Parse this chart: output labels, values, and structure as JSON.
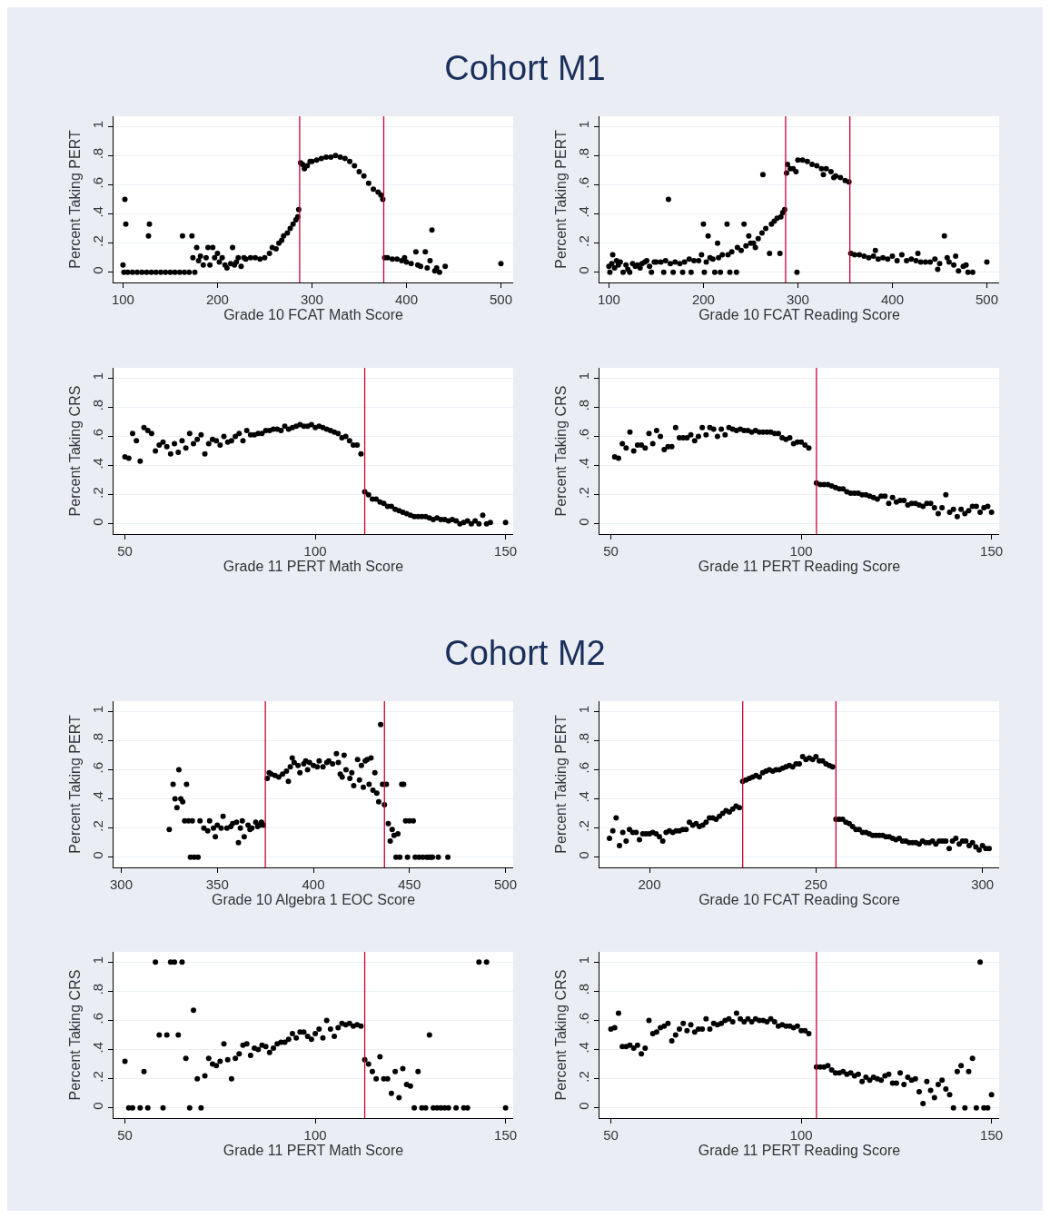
{
  "chart_data": [
    {
      "type": "scatter",
      "title": "Cohort M1",
      "xlabel": "Grade 10 FCAT Math Score",
      "ylabel": "Percent Taking PERT",
      "color": "#000000",
      "marker": "circle",
      "grid": "y",
      "xlim": [
        90,
        513
      ],
      "xticks": [
        100,
        200,
        300,
        400,
        500
      ],
      "ylim": [
        -0.07,
        1.07
      ],
      "yticks": [
        {
          "value": 0,
          "label": "0"
        },
        {
          "value": 0.2,
          "label": ".2"
        },
        {
          "value": 0.4,
          "label": ".4"
        },
        {
          "value": 0.6,
          "label": ".6"
        },
        {
          "value": 0.8,
          "label": ".8"
        },
        {
          "value": 1,
          "label": "1"
        }
      ],
      "ref_lines": [
        {
          "axis": "x",
          "value": 287,
          "color": "#cc0033"
        },
        {
          "axis": "x",
          "value": 376,
          "color": "#cc0033"
        }
      ],
      "x": [
        100,
        102,
        103,
        101,
        105,
        110,
        115,
        120,
        125,
        127,
        128,
        130,
        135,
        140,
        145,
        150,
        155,
        160,
        163,
        165,
        170,
        173,
        174,
        176,
        178,
        180,
        182,
        185,
        188,
        190,
        192,
        195,
        197,
        200,
        202,
        205,
        208,
        210,
        214,
        216,
        218,
        220,
        222,
        225,
        228,
        230,
        235,
        240,
        245,
        250,
        255,
        258,
        262,
        265,
        268,
        270,
        274,
        277,
        280,
        283,
        285,
        286,
        288,
        290,
        292,
        295,
        298,
        300,
        305,
        310,
        315,
        320,
        325,
        330,
        335,
        340,
        345,
        350,
        355,
        360,
        365,
        370,
        373,
        375,
        377,
        380,
        385,
        390,
        395,
        398,
        400,
        405,
        410,
        412,
        415,
        420,
        422,
        425,
        427,
        430,
        432,
        435,
        441,
        500
      ],
      "values": [
        0.05,
        0.5,
        0.33,
        0,
        0,
        0,
        0,
        0,
        0,
        0.25,
        0.33,
        0,
        0,
        0,
        0,
        0,
        0,
        0,
        0.25,
        0,
        0,
        0.25,
        0.1,
        0,
        0.17,
        0.08,
        0.11,
        0.05,
        0.1,
        0.17,
        0.05,
        0.17,
        0.1,
        0.13,
        0.07,
        0.1,
        0.05,
        0.03,
        0.06,
        0.17,
        0.05,
        0.07,
        0.1,
        0.04,
        0.1,
        0.09,
        0.1,
        0.1,
        0.09,
        0.1,
        0.13,
        0.17,
        0.16,
        0.2,
        0.22,
        0.25,
        0.27,
        0.3,
        0.33,
        0.36,
        0.38,
        0.43,
        0.75,
        0.74,
        0.71,
        0.73,
        0.76,
        0.76,
        0.77,
        0.78,
        0.79,
        0.79,
        0.8,
        0.79,
        0.78,
        0.76,
        0.73,
        0.69,
        0.66,
        0.61,
        0.57,
        0.55,
        0.53,
        0.5,
        0.1,
        0.1,
        0.09,
        0.09,
        0.08,
        0.1,
        0.07,
        0.06,
        0.14,
        0.05,
        0.04,
        0.14,
        0.03,
        0.08,
        0.29,
        0.01,
        0.03,
        0,
        0.04,
        0.06
      ]
    },
    {
      "type": "scatter",
      "xlabel": "Grade 10 FCAT Reading Score",
      "ylabel": "Percent Taking PERT",
      "color": "#000000",
      "marker": "circle",
      "grid": "y",
      "xlim": [
        90,
        513
      ],
      "xticks": [
        100,
        200,
        300,
        400,
        500
      ],
      "ylim": [
        -0.07,
        1.07
      ],
      "yticks": [
        {
          "value": 0,
          "label": "0"
        },
        {
          "value": 0.2,
          "label": ".2"
        },
        {
          "value": 0.4,
          "label": ".4"
        },
        {
          "value": 0.6,
          "label": ".6"
        },
        {
          "value": 0.8,
          "label": ".8"
        },
        {
          "value": 1,
          "label": "1"
        }
      ],
      "ref_lines": [
        {
          "axis": "x",
          "value": 287,
          "color": "#cc0033"
        },
        {
          "axis": "x",
          "value": 355,
          "color": "#cc0033"
        }
      ],
      "x": [
        100,
        101,
        103,
        104,
        106,
        108,
        110,
        112,
        115,
        118,
        120,
        122,
        125,
        128,
        130,
        133,
        135,
        138,
        140,
        143,
        145,
        148,
        150,
        155,
        158,
        160,
        163,
        165,
        168,
        170,
        175,
        178,
        180,
        185,
        187,
        190,
        195,
        198,
        200,
        201,
        203,
        205,
        207,
        210,
        212,
        215,
        216,
        218,
        220,
        225,
        226,
        228,
        230,
        235,
        236,
        240,
        243,
        245,
        248,
        250,
        253,
        255,
        258,
        262,
        263,
        266,
        270,
        272,
        275,
        278,
        281,
        282,
        284,
        286,
        288,
        289,
        292,
        295,
        298,
        299,
        300,
        305,
        310,
        315,
        320,
        325,
        327,
        330,
        335,
        338,
        340,
        345,
        350,
        354,
        356,
        360,
        365,
        370,
        375,
        380,
        382,
        385,
        390,
        395,
        400,
        405,
        410,
        415,
        420,
        425,
        427,
        430,
        435,
        440,
        445,
        448,
        450,
        455,
        458,
        460,
        465,
        467,
        470,
        475,
        478,
        480,
        485,
        500
      ],
      "values": [
        0.04,
        0,
        0.06,
        0.12,
        0.03,
        0.08,
        0.05,
        0.07,
        0,
        0.05,
        0.02,
        0,
        0.06,
        0.04,
        0.05,
        0.03,
        0.06,
        0.07,
        0.08,
        0.04,
        0,
        0.07,
        0.07,
        0.07,
        0,
        0.08,
        0.5,
        0.06,
        0,
        0.07,
        0.06,
        0,
        0.07,
        0.09,
        0,
        0.08,
        0.08,
        0.12,
        0.33,
        0,
        0.07,
        0.25,
        0.1,
        0.09,
        0,
        0.2,
        0.1,
        0,
        0.12,
        0.33,
        0.12,
        0,
        0.14,
        0,
        0.17,
        0.15,
        0.33,
        0.18,
        0.25,
        0.2,
        0.2,
        0.17,
        0.23,
        0.27,
        0.67,
        0.3,
        0.13,
        0.33,
        0.35,
        0.37,
        0.13,
        0.38,
        0.41,
        0.43,
        0.68,
        0.74,
        0.71,
        0.71,
        0.69,
        0,
        0.77,
        0.77,
        0.76,
        0.74,
        0.73,
        0.71,
        0.67,
        0.71,
        0.69,
        0.65,
        0.66,
        0.65,
        0.63,
        0.62,
        0.13,
        0.12,
        0.12,
        0.11,
        0.1,
        0.11,
        0.15,
        0.09,
        0.1,
        0.09,
        0.11,
        0.08,
        0.12,
        0.08,
        0.09,
        0.08,
        0.13,
        0.07,
        0.07,
        0.07,
        0.09,
        0.02,
        0.06,
        0.25,
        0.1,
        0.07,
        0.05,
        0.11,
        0.01,
        0.04,
        0.05,
        0,
        0,
        0.07
      ]
    },
    {
      "type": "scatter",
      "xlabel": "Grade 11 PERT Math Score",
      "ylabel": "Percent Taking CRS",
      "color": "#000000",
      "marker": "circle",
      "grid": "y",
      "xlim": [
        47,
        152
      ],
      "xticks": [
        50,
        100,
        150
      ],
      "ylim": [
        -0.07,
        1.07
      ],
      "yticks": [
        {
          "value": 0,
          "label": "0"
        },
        {
          "value": 0.2,
          "label": ".2"
        },
        {
          "value": 0.4,
          "label": ".4"
        },
        {
          "value": 0.6,
          "label": ".6"
        },
        {
          "value": 0.8,
          "label": ".8"
        },
        {
          "value": 1,
          "label": "1"
        }
      ],
      "ref_lines": [
        {
          "axis": "x",
          "value": 113,
          "color": "#cc0033"
        }
      ],
      "x": [
        50,
        51,
        52,
        53,
        54,
        55,
        56,
        57,
        58,
        59,
        60,
        61,
        62,
        63,
        64,
        65,
        66,
        67,
        68,
        69,
        70,
        71,
        72,
        73,
        74,
        75,
        76,
        77,
        78,
        79,
        80,
        81,
        82,
        83,
        84,
        85,
        86,
        87,
        88,
        89,
        90,
        91,
        92,
        93,
        94,
        95,
        96,
        97,
        98,
        99,
        100,
        101,
        102,
        103,
        104,
        105,
        106,
        107,
        108,
        109,
        110,
        111,
        112,
        113,
        114,
        115,
        116,
        117,
        118,
        119,
        120,
        121,
        122,
        123,
        124,
        125,
        126,
        127,
        128,
        129,
        130,
        131,
        132,
        133,
        134,
        135,
        136,
        137,
        138,
        139,
        140,
        141,
        142,
        143,
        144,
        145,
        146,
        150
      ],
      "values": [
        0.46,
        0.45,
        0.62,
        0.57,
        0.43,
        0.66,
        0.64,
        0.62,
        0.5,
        0.54,
        0.56,
        0.53,
        0.48,
        0.55,
        0.49,
        0.57,
        0.52,
        0.62,
        0.55,
        0.58,
        0.61,
        0.48,
        0.55,
        0.58,
        0.57,
        0.54,
        0.6,
        0.56,
        0.57,
        0.6,
        0.62,
        0.57,
        0.64,
        0.61,
        0.61,
        0.62,
        0.62,
        0.64,
        0.64,
        0.65,
        0.65,
        0.64,
        0.67,
        0.65,
        0.66,
        0.67,
        0.68,
        0.67,
        0.67,
        0.68,
        0.66,
        0.67,
        0.66,
        0.65,
        0.64,
        0.63,
        0.62,
        0.59,
        0.6,
        0.57,
        0.54,
        0.54,
        0.48,
        0.22,
        0.2,
        0.17,
        0.17,
        0.15,
        0.14,
        0.12,
        0.12,
        0.1,
        0.09,
        0.08,
        0.07,
        0.06,
        0.05,
        0.05,
        0.05,
        0.05,
        0.04,
        0.03,
        0.04,
        0.03,
        0.03,
        0.02,
        0.03,
        0.02,
        0,
        0.01,
        0.02,
        0,
        0.02,
        0,
        0.06,
        0,
        0.01,
        0.01
      ]
    },
    {
      "type": "scatter",
      "xlabel": "Grade 11 PERT Reading Score",
      "ylabel": "Percent Taking CRS",
      "color": "#000000",
      "marker": "circle",
      "grid": "y",
      "xlim": [
        47,
        152
      ],
      "xticks": [
        50,
        100,
        150
      ],
      "ylim": [
        -0.07,
        1.07
      ],
      "yticks": [
        {
          "value": 0,
          "label": "0"
        },
        {
          "value": 0.2,
          "label": ".2"
        },
        {
          "value": 0.4,
          "label": ".4"
        },
        {
          "value": 0.6,
          "label": ".6"
        },
        {
          "value": 0.8,
          "label": ".8"
        },
        {
          "value": 1,
          "label": "1"
        }
      ],
      "ref_lines": [
        {
          "axis": "x",
          "value": 104,
          "color": "#cc0033"
        }
      ],
      "x": [
        51,
        52,
        53,
        54,
        55,
        56,
        57,
        58,
        59,
        60,
        61,
        62,
        63,
        64,
        65,
        66,
        67,
        68,
        69,
        70,
        71,
        72,
        73,
        74,
        75,
        76,
        77,
        78,
        79,
        80,
        81,
        82,
        83,
        84,
        85,
        86,
        87,
        88,
        89,
        90,
        91,
        92,
        93,
        94,
        95,
        96,
        97,
        98,
        99,
        100,
        101,
        102,
        104,
        105,
        106,
        107,
        108,
        109,
        110,
        111,
        112,
        113,
        114,
        115,
        116,
        117,
        118,
        119,
        120,
        121,
        122,
        123,
        124,
        125,
        126,
        127,
        128,
        129,
        130,
        131,
        132,
        133,
        134,
        135,
        136,
        137,
        138,
        139,
        140,
        141,
        142,
        143,
        144,
        145,
        146,
        147,
        148,
        149,
        150
      ],
      "values": [
        0.46,
        0.45,
        0.55,
        0.52,
        0.63,
        0.5,
        0.54,
        0.54,
        0.52,
        0.62,
        0.55,
        0.64,
        0.6,
        0.51,
        0.53,
        0.53,
        0.66,
        0.59,
        0.59,
        0.59,
        0.61,
        0.57,
        0.6,
        0.66,
        0.61,
        0.66,
        0.65,
        0.6,
        0.65,
        0.61,
        0.66,
        0.65,
        0.64,
        0.65,
        0.64,
        0.64,
        0.63,
        0.64,
        0.63,
        0.63,
        0.63,
        0.63,
        0.62,
        0.62,
        0.59,
        0.58,
        0.59,
        0.55,
        0.56,
        0.56,
        0.54,
        0.52,
        0.28,
        0.27,
        0.27,
        0.27,
        0.26,
        0.25,
        0.24,
        0.24,
        0.22,
        0.21,
        0.21,
        0.21,
        0.2,
        0.2,
        0.19,
        0.18,
        0.17,
        0.19,
        0.19,
        0.14,
        0.18,
        0.15,
        0.16,
        0.16,
        0.13,
        0.14,
        0.14,
        0.13,
        0.12,
        0.14,
        0.14,
        0.11,
        0.07,
        0.11,
        0.2,
        0.08,
        0.1,
        0.05,
        0.1,
        0.07,
        0.09,
        0.12,
        0.12,
        0.08,
        0.11,
        0.12,
        0.08
      ]
    },
    {
      "type": "scatter",
      "title": "Cohort M2",
      "xlabel": "Grade 10 Algebra 1 EOC Score",
      "ylabel": "Percent Taking PERT",
      "color": "#000000",
      "marker": "circle",
      "grid": "y",
      "xlim": [
        296,
        504
      ],
      "xticks": [
        300,
        350,
        400,
        450,
        500
      ],
      "ylim": [
        -0.07,
        1.07
      ],
      "yticks": [
        {
          "value": 0,
          "label": "0"
        },
        {
          "value": 0.2,
          "label": ".2"
        },
        {
          "value": 0.4,
          "label": ".4"
        },
        {
          "value": 0.6,
          "label": ".6"
        },
        {
          "value": 0.8,
          "label": ".8"
        },
        {
          "value": 1,
          "label": "1"
        }
      ],
      "ref_lines": [
        {
          "axis": "x",
          "value": 375,
          "color": "#cc0033"
        },
        {
          "axis": "x",
          "value": 437,
          "color": "#cc0033"
        }
      ],
      "x": [
        325,
        327,
        328,
        329,
        330,
        331,
        332,
        333,
        334,
        335,
        336,
        337,
        338,
        340,
        341,
        343,
        345,
        346,
        348,
        349,
        350,
        352,
        353,
        355,
        357,
        358,
        360,
        361,
        362,
        363,
        364,
        366,
        367,
        368,
        370,
        371,
        372,
        373,
        374,
        376,
        377,
        378,
        380,
        382,
        384,
        386,
        387,
        388,
        389,
        390,
        392,
        393,
        395,
        396,
        397,
        398,
        400,
        402,
        403,
        405,
        407,
        408,
        410,
        412,
        413,
        414,
        415,
        416,
        417,
        419,
        420,
        421,
        423,
        424,
        425,
        426,
        427,
        428,
        429,
        430,
        431,
        432,
        433,
        434,
        435,
        436,
        437,
        438,
        439,
        440,
        441,
        442,
        443,
        444,
        445,
        446,
        447,
        448,
        449,
        450,
        452,
        453,
        455,
        457,
        459,
        460,
        461,
        462,
        465,
        470
      ],
      "values": [
        0.19,
        0.5,
        0.4,
        0.34,
        0.6,
        0.4,
        0.38,
        0.25,
        0.5,
        0.25,
        0,
        0.25,
        0,
        0,
        0.25,
        0.2,
        0.18,
        0.25,
        0.2,
        0.14,
        0.22,
        0.2,
        0.28,
        0.2,
        0.21,
        0.23,
        0.24,
        0.1,
        0.2,
        0.25,
        0.14,
        0.22,
        0.19,
        0.2,
        0.24,
        0.21,
        0.22,
        0.24,
        0.22,
        0.54,
        0.58,
        0.57,
        0.56,
        0.55,
        0.57,
        0.59,
        0.52,
        0.62,
        0.68,
        0.65,
        0.63,
        0.58,
        0.64,
        0.66,
        0.6,
        0.65,
        0.63,
        0.62,
        0.66,
        0.62,
        0.65,
        0.66,
        0.64,
        0.71,
        0.65,
        0.57,
        0.55,
        0.7,
        0.6,
        0.54,
        0.58,
        0.49,
        0.67,
        0.53,
        0.63,
        0.48,
        0.66,
        0.67,
        0.5,
        0.68,
        0.46,
        0.58,
        0.44,
        0.38,
        0.91,
        0.5,
        0.36,
        0.5,
        0.23,
        0.11,
        0.19,
        0.15,
        0,
        0.16,
        0,
        0.5,
        0.5,
        0.25,
        0,
        0.25,
        0.25,
        0,
        0,
        0,
        0,
        0,
        0,
        0,
        0,
        0
      ]
    },
    {
      "type": "scatter",
      "xlabel": "Grade 10 FCAT Reading Score",
      "ylabel": "Percent Taking PERT",
      "color": "#000000",
      "marker": "circle",
      "grid": "y",
      "xlim": [
        185,
        305
      ],
      "xticks": [
        200,
        250,
        300
      ],
      "ylim": [
        -0.07,
        1.07
      ],
      "yticks": [
        {
          "value": 0,
          "label": "0"
        },
        {
          "value": 0.2,
          "label": ".2"
        },
        {
          "value": 0.4,
          "label": ".4"
        },
        {
          "value": 0.6,
          "label": ".6"
        },
        {
          "value": 0.8,
          "label": ".8"
        },
        {
          "value": 1,
          "label": "1"
        }
      ],
      "ref_lines": [
        {
          "axis": "x",
          "value": 228,
          "color": "#cc0033"
        },
        {
          "axis": "x",
          "value": 256,
          "color": "#cc0033"
        }
      ],
      "x": [
        188,
        189,
        190,
        191,
        192,
        193,
        194,
        195,
        196,
        197,
        198,
        199,
        200,
        201,
        202,
        203,
        204,
        205,
        206,
        207,
        208,
        209,
        210,
        211,
        212,
        213,
        214,
        215,
        216,
        217,
        218,
        219,
        220,
        221,
        222,
        223,
        224,
        225,
        226,
        227,
        228,
        229,
        230,
        231,
        232,
        233,
        234,
        235,
        236,
        237,
        238,
        239,
        240,
        241,
        242,
        243,
        244,
        245,
        246,
        247,
        248,
        249,
        250,
        251,
        252,
        253,
        254,
        255,
        256,
        257,
        258,
        259,
        260,
        261,
        262,
        263,
        264,
        265,
        266,
        267,
        268,
        269,
        270,
        271,
        272,
        273,
        274,
        275,
        276,
        277,
        278,
        279,
        280,
        281,
        282,
        283,
        284,
        285,
        286,
        287,
        288,
        289,
        290,
        291,
        292,
        293,
        294,
        295,
        296,
        297,
        298,
        299,
        300,
        301,
        302
      ],
      "values": [
        0.13,
        0.18,
        0.27,
        0.08,
        0.17,
        0.11,
        0.19,
        0.17,
        0.17,
        0.12,
        0.16,
        0.16,
        0.16,
        0.17,
        0.16,
        0.14,
        0.11,
        0.17,
        0.18,
        0.17,
        0.18,
        0.18,
        0.19,
        0.19,
        0.24,
        0.22,
        0.23,
        0.21,
        0.22,
        0.24,
        0.27,
        0.27,
        0.26,
        0.28,
        0.3,
        0.32,
        0.31,
        0.33,
        0.35,
        0.34,
        0.52,
        0.53,
        0.54,
        0.55,
        0.56,
        0.55,
        0.58,
        0.59,
        0.6,
        0.59,
        0.6,
        0.6,
        0.61,
        0.62,
        0.63,
        0.62,
        0.64,
        0.64,
        0.69,
        0.67,
        0.68,
        0.67,
        0.69,
        0.66,
        0.66,
        0.64,
        0.63,
        0.62,
        0.26,
        0.26,
        0.26,
        0.24,
        0.23,
        0.21,
        0.19,
        0.19,
        0.17,
        0.17,
        0.16,
        0.15,
        0.15,
        0.15,
        0.15,
        0.14,
        0.14,
        0.13,
        0.12,
        0.13,
        0.11,
        0.11,
        0.1,
        0.1,
        0.1,
        0.09,
        0.11,
        0.1,
        0.1,
        0.11,
        0.09,
        0.11,
        0.11,
        0.11,
        0.06,
        0.11,
        0.13,
        0.09,
        0.11,
        0.11,
        0.08,
        0.1,
        0.07,
        0.05,
        0.08,
        0.06,
        0.06
      ]
    },
    {
      "type": "scatter",
      "xlabel": "Grade 11 PERT Math Score",
      "ylabel": "Percent Taking CRS",
      "color": "#000000",
      "marker": "circle",
      "grid": "y",
      "xlim": [
        47,
        152
      ],
      "xticks": [
        50,
        100,
        150
      ],
      "ylim": [
        -0.07,
        1.07
      ],
      "yticks": [
        {
          "value": 0,
          "label": "0"
        },
        {
          "value": 0.2,
          "label": ".2"
        },
        {
          "value": 0.4,
          "label": ".4"
        },
        {
          "value": 0.6,
          "label": ".6"
        },
        {
          "value": 0.8,
          "label": ".8"
        },
        {
          "value": 1,
          "label": "1"
        }
      ],
      "ref_lines": [
        {
          "axis": "x",
          "value": 113,
          "color": "#cc0033"
        }
      ],
      "x": [
        50,
        51,
        52,
        54,
        55,
        56,
        58,
        59,
        60,
        61,
        62,
        63,
        64,
        65,
        66,
        67,
        68,
        69,
        70,
        71,
        72,
        73,
        74,
        75,
        76,
        77,
        78,
        79,
        80,
        81,
        82,
        83,
        84,
        85,
        86,
        87,
        88,
        89,
        90,
        91,
        92,
        93,
        94,
        95,
        96,
        97,
        98,
        99,
        100,
        101,
        102,
        103,
        104,
        105,
        106,
        107,
        108,
        109,
        110,
        111,
        112,
        113,
        114,
        115,
        116,
        117,
        118,
        119,
        120,
        121,
        122,
        123,
        124,
        125,
        126,
        127,
        128,
        129,
        130,
        131,
        132,
        133,
        134,
        135,
        137,
        139,
        140,
        143,
        145,
        150
      ],
      "values": [
        0.32,
        0,
        0,
        0,
        0.25,
        0,
        1,
        0.5,
        0,
        0.5,
        1,
        1,
        0.5,
        1,
        0.34,
        0,
        0.67,
        0.2,
        0,
        0.22,
        0.34,
        0.3,
        0.29,
        0.32,
        0.44,
        0.33,
        0.2,
        0.34,
        0.37,
        0.43,
        0.44,
        0.36,
        0.41,
        0.4,
        0.43,
        0.42,
        0.38,
        0.41,
        0.44,
        0.45,
        0.45,
        0.47,
        0.51,
        0.48,
        0.52,
        0.52,
        0.49,
        0.47,
        0.51,
        0.54,
        0.48,
        0.6,
        0.54,
        0.49,
        0.55,
        0.58,
        0.57,
        0.58,
        0.56,
        0.57,
        0.56,
        0.33,
        0.3,
        0.25,
        0.2,
        0.35,
        0.2,
        0.2,
        0.1,
        0.25,
        0.07,
        0.27,
        0.16,
        0.15,
        0,
        0.25,
        0,
        0,
        0.5,
        0,
        0,
        0,
        0,
        0,
        0,
        0,
        0,
        1,
        1,
        0
      ]
    },
    {
      "type": "scatter",
      "xlabel": "Grade 11 PERT Reading Score",
      "ylabel": "Percent Taking CRS",
      "color": "#000000",
      "marker": "circle",
      "grid": "y",
      "xlim": [
        47,
        152
      ],
      "xticks": [
        50,
        100,
        150
      ],
      "ylim": [
        -0.07,
        1.07
      ],
      "yticks": [
        {
          "value": 0,
          "label": "0"
        },
        {
          "value": 0.2,
          "label": ".2"
        },
        {
          "value": 0.4,
          "label": ".4"
        },
        {
          "value": 0.6,
          "label": ".6"
        },
        {
          "value": 0.8,
          "label": ".8"
        },
        {
          "value": 1,
          "label": "1"
        }
      ],
      "ref_lines": [
        {
          "axis": "x",
          "value": 104,
          "color": "#cc0033"
        }
      ],
      "x": [
        50,
        51,
        52,
        53,
        54,
        55,
        56,
        57,
        58,
        59,
        60,
        61,
        62,
        63,
        64,
        65,
        66,
        67,
        68,
        69,
        70,
        71,
        72,
        73,
        74,
        75,
        76,
        77,
        78,
        79,
        80,
        81,
        82,
        83,
        84,
        85,
        86,
        87,
        88,
        89,
        90,
        91,
        92,
        93,
        94,
        95,
        96,
        97,
        98,
        99,
        100,
        101,
        102,
        104,
        105,
        106,
        107,
        108,
        109,
        110,
        111,
        112,
        113,
        114,
        115,
        116,
        117,
        118,
        119,
        120,
        121,
        122,
        123,
        124,
        125,
        126,
        127,
        128,
        129,
        130,
        131,
        132,
        133,
        134,
        135,
        136,
        137,
        138,
        139,
        140,
        141,
        142,
        143,
        144,
        145,
        146,
        147,
        148,
        149,
        150
      ],
      "values": [
        0.54,
        0.55,
        0.65,
        0.42,
        0.42,
        0.43,
        0.41,
        0.43,
        0.37,
        0.41,
        0.6,
        0.51,
        0.52,
        0.55,
        0.56,
        0.58,
        0.46,
        0.5,
        0.54,
        0.58,
        0.53,
        0.57,
        0.52,
        0.54,
        0.54,
        0.61,
        0.54,
        0.58,
        0.57,
        0.58,
        0.6,
        0.61,
        0.59,
        0.65,
        0.61,
        0.59,
        0.61,
        0.59,
        0.61,
        0.6,
        0.6,
        0.59,
        0.61,
        0.59,
        0.56,
        0.57,
        0.56,
        0.56,
        0.55,
        0.56,
        0.53,
        0.53,
        0.51,
        0.28,
        0.28,
        0.28,
        0.29,
        0.26,
        0.24,
        0.24,
        0.25,
        0.23,
        0.24,
        0.22,
        0.23,
        0.18,
        0.21,
        0.19,
        0.21,
        0.2,
        0.19,
        0.22,
        0.23,
        0.17,
        0.17,
        0.24,
        0.16,
        0.21,
        0.19,
        0.2,
        0.11,
        0.03,
        0.18,
        0.12,
        0.07,
        0.16,
        0.19,
        0.13,
        0.09,
        0,
        0.25,
        0.29,
        0,
        0.25,
        0.34,
        0,
        1,
        0,
        0,
        0.09
      ]
    }
  ]
}
